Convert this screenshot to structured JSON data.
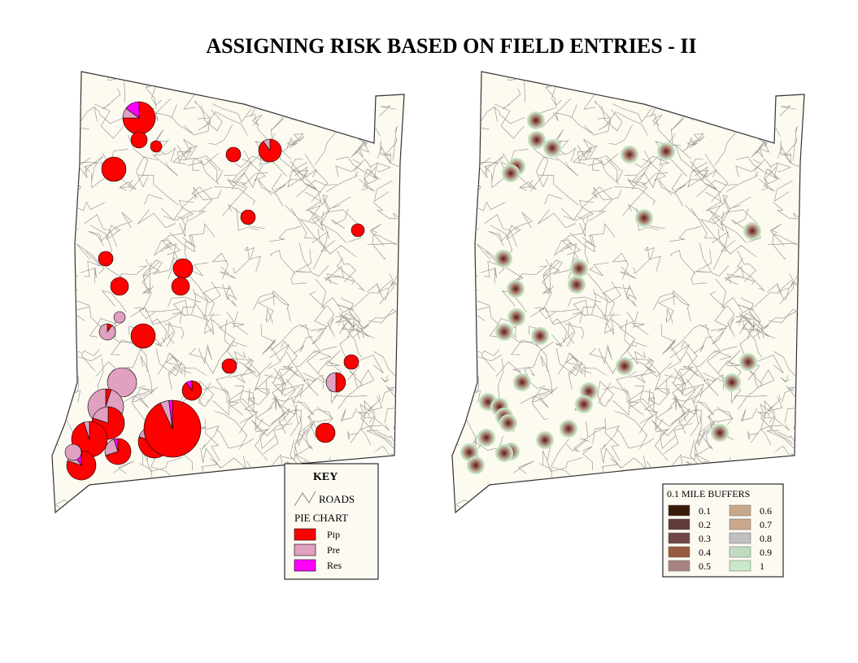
{
  "title": "ASSIGNING RISK BASED ON FIELD ENTRIES - II",
  "left_map": {
    "key": {
      "title": "KEY",
      "roads_label": "ROADS",
      "pie_chart_title": "PIE CHART",
      "items": [
        {
          "label": "Pip",
          "color": "#ff0000"
        },
        {
          "label": "Pre",
          "color": "#e0a0c0"
        },
        {
          "label": "Res",
          "color": "#ff00ff"
        }
      ]
    }
  },
  "right_map": {
    "legend": {
      "title": "0.1 MILE BUFFERS",
      "items": [
        {
          "value": 0.1,
          "color": "#3a1a08"
        },
        {
          "value": 0.2,
          "color": "#5e3a3a"
        },
        {
          "value": 0.3,
          "color": "#6e4646"
        },
        {
          "value": 0.4,
          "color": "#9a5a3e"
        },
        {
          "value": 0.5,
          "color": "#a88480"
        },
        {
          "value": 0.6,
          "color": "#c8a88a"
        },
        {
          "value": 0.7,
          "color": "#caa88c"
        },
        {
          "value": 0.8,
          "color": "#c0c0c0"
        },
        {
          "value": 0.9,
          "color": "#c0dcc0"
        },
        {
          "value": 1,
          "color": "#c8e8c8"
        }
      ]
    }
  }
}
